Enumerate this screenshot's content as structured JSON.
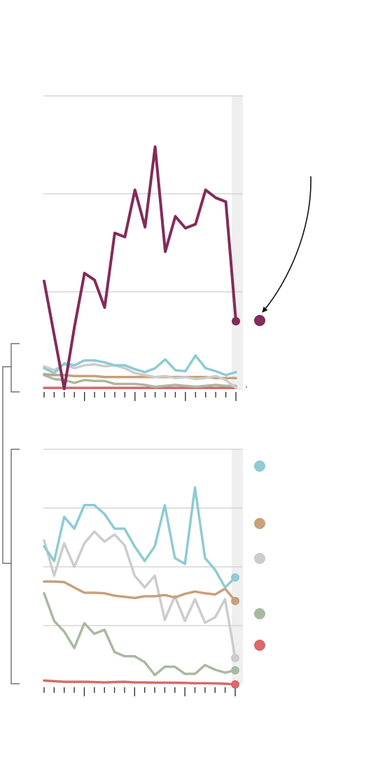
{
  "colors": {
    "highlight_band": "#efefef",
    "gridline": "#d6d6d6",
    "axis": "#333333",
    "arrow": "#111111",
    "bracket": "#555555"
  },
  "chart_data": [
    {
      "type": "line",
      "title": "",
      "xlabel": "",
      "ylabel": "",
      "x": [
        1,
        2,
        3,
        4,
        5,
        6,
        7,
        8,
        9,
        10,
        11,
        12,
        13,
        14,
        15,
        16,
        17,
        18,
        19,
        20
      ],
      "ylim": [
        0,
        3
      ],
      "yticks": [
        0,
        1,
        2,
        3
      ],
      "grid": true,
      "highlight_last_period": true,
      "annotation": {
        "text": "",
        "target_series": 0,
        "style": "curved-arrow"
      },
      "series": [
        {
          "color": "#842b5a",
          "marker_color": "#842b5a",
          "values": [
            1.11,
            0.56,
            0.01,
            0.64,
            1.19,
            1.12,
            0.84,
            1.6,
            1.56,
            2.04,
            1.66,
            2.48,
            1.41,
            1.77,
            1.65,
            1.69,
            2.04,
            1.96,
            1.92,
            0.7
          ]
        },
        {
          "color": "#8ecbd2",
          "values": [
            0.22,
            0.17,
            0.27,
            0.25,
            0.3,
            0.3,
            0.28,
            0.25,
            0.25,
            0.21,
            0.18,
            0.22,
            0.31,
            0.2,
            0.19,
            0.35,
            0.22,
            0.19,
            0.15,
            0.18
          ]
        },
        {
          "color": "#cccccc",
          "values": [
            0.24,
            0.2,
            0.26,
            0.22,
            0.25,
            0.26,
            0.24,
            0.25,
            0.22,
            0.17,
            0.15,
            0.13,
            0.14,
            0.12,
            0.13,
            0.11,
            0.12,
            0.14,
            0.1,
            0.02
          ]
        },
        {
          "color": "#c8a07a",
          "values": [
            0.16,
            0.15,
            0.15,
            0.14,
            0.14,
            0.14,
            0.13,
            0.13,
            0.13,
            0.13,
            0.13,
            0.13,
            0.13,
            0.13,
            0.13,
            0.13,
            0.13,
            0.12,
            0.12,
            0.12
          ]
        },
        {
          "color": "#a9b9a0",
          "values": [
            0.15,
            0.11,
            0.1,
            0.07,
            0.1,
            0.09,
            0.09,
            0.06,
            0.06,
            0.06,
            0.05,
            0.03,
            0.04,
            0.05,
            0.04,
            0.03,
            0.04,
            0.05,
            0.04,
            0.04
          ]
        },
        {
          "color": "#d86a6a",
          "values": [
            0.02,
            0.02,
            0.02,
            0.02,
            0.02,
            0.02,
            0.02,
            0.02,
            0.02,
            0.02,
            0.02,
            0.02,
            0.02,
            0.02,
            0.02,
            0.02,
            0.02,
            0.02,
            0.02,
            0.02
          ]
        }
      ]
    },
    {
      "type": "line",
      "title": "",
      "xlabel": "",
      "ylabel": "",
      "x": [
        1,
        2,
        3,
        4,
        5,
        6,
        7,
        8,
        9,
        10,
        11,
        12,
        13,
        14,
        15,
        16,
        17,
        18,
        19,
        20
      ],
      "ylim": [
        0,
        0.4
      ],
      "yticks": [
        0,
        0.1,
        0.2,
        0.3,
        0.4
      ],
      "grid": true,
      "highlight_last_period": true,
      "legend": {
        "placement": "right"
      },
      "series": [
        {
          "color": "#8ecbd2",
          "values": [
            0.235,
            0.21,
            0.285,
            0.265,
            0.305,
            0.305,
            0.29,
            0.265,
            0.265,
            0.235,
            0.21,
            0.235,
            0.305,
            0.215,
            0.205,
            0.335,
            0.215,
            0.195,
            0.165,
            0.182
          ]
        },
        {
          "color": "#c8a07a",
          "values": [
            0.175,
            0.175,
            0.174,
            0.165,
            0.156,
            0.156,
            0.155,
            0.151,
            0.149,
            0.147,
            0.15,
            0.15,
            0.152,
            0.148,
            0.154,
            0.158,
            0.155,
            0.153,
            0.163,
            0.142
          ]
        },
        {
          "color": "#cccccc",
          "values": [
            0.245,
            0.185,
            0.24,
            0.2,
            0.24,
            0.26,
            0.243,
            0.255,
            0.237,
            0.185,
            0.165,
            0.185,
            0.11,
            0.15,
            0.108,
            0.145,
            0.105,
            0.114,
            0.145,
            0.045
          ]
        },
        {
          "color": "#a9b9a0",
          "values": [
            0.155,
            0.108,
            0.09,
            0.062,
            0.104,
            0.086,
            0.093,
            0.055,
            0.048,
            0.048,
            0.038,
            0.016,
            0.03,
            0.03,
            0.018,
            0.018,
            0.033,
            0.025,
            0.02,
            0.024
          ]
        },
        {
          "color": "#d86a6a",
          "values": [
            0.0065,
            0.0055,
            0.0045,
            0.0045,
            0.0045,
            0.004,
            0.0035,
            0.004,
            0.0045,
            0.0035,
            0.0035,
            0.003,
            0.003,
            0.0028,
            0.0025,
            0.002,
            0.0022,
            0.0018,
            0.0012,
            0.0
          ]
        }
      ]
    }
  ]
}
